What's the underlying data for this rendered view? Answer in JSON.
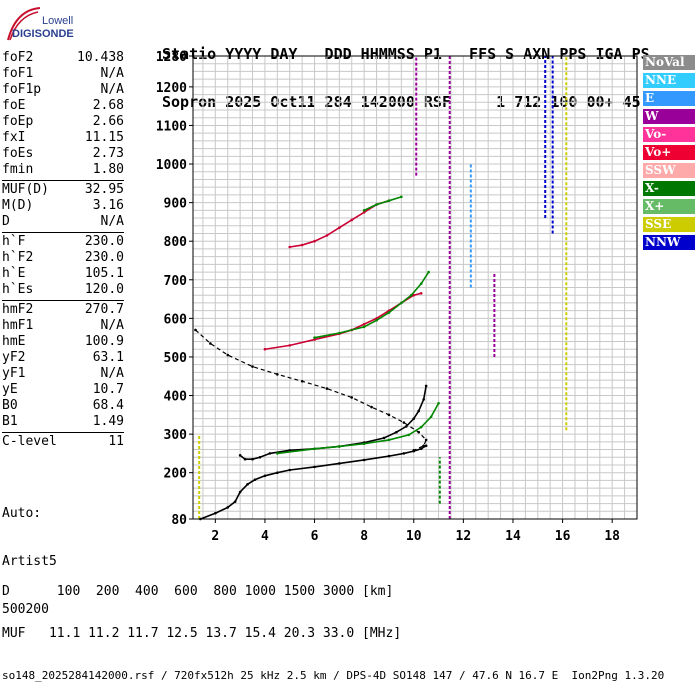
{
  "logo": {
    "brand": "Lowell",
    "product": "DIGISONDE",
    "brand_color": "#2a3f8f",
    "accent_color": "#c8102e"
  },
  "header": {
    "line1": "Statio YYYY DAY   DDD HHMMSS P1   FFS S AXN PPS IGA PS",
    "line2": "Sopron 2025 Oct11 284 142000 RSF     1 712 100 00+ 45"
  },
  "params": {
    "groups": [
      [
        {
          "label": "foF2",
          "value": "10.438"
        },
        {
          "label": "foF1",
          "value": "N/A"
        },
        {
          "label": "foF1p",
          "value": "N/A"
        },
        {
          "label": "foE",
          "value": "2.68"
        },
        {
          "label": "foEp",
          "value": "2.66"
        },
        {
          "label": "fxI",
          "value": "11.15"
        },
        {
          "label": "foEs",
          "value": "2.73"
        },
        {
          "label": "fmin",
          "value": "1.80"
        }
      ],
      [
        {
          "label": "MUF(D)",
          "value": "32.95"
        },
        {
          "label": "M(D)",
          "value": "3.16"
        },
        {
          "label": "D",
          "value": "N/A"
        }
      ],
      [
        {
          "label": "h`F",
          "value": "230.0"
        },
        {
          "label": "h`F2",
          "value": "230.0"
        },
        {
          "label": "h`E",
          "value": "105.1"
        },
        {
          "label": "h`Es",
          "value": "120.0"
        }
      ],
      [
        {
          "label": "hmF2",
          "value": "270.7"
        },
        {
          "label": "hmF1",
          "value": "N/A"
        },
        {
          "label": "hmE",
          "value": "100.9"
        },
        {
          "label": "yF2",
          "value": "63.1"
        },
        {
          "label": "yF1",
          "value": "N/A"
        },
        {
          "label": "yE",
          "value": "10.7"
        },
        {
          "label": "B0",
          "value": "68.4"
        },
        {
          "label": "B1",
          "value": "1.49"
        }
      ],
      [
        {
          "label": "C-level",
          "value": "11"
        }
      ]
    ]
  },
  "auto": {
    "line1": "Auto:",
    "line2": "Artist5",
    "line3": "500200"
  },
  "legend": [
    {
      "label": "NoVal",
      "color": "#8c8c8c"
    },
    {
      "label": "NNE",
      "color": "#33ccff"
    },
    {
      "label": "E",
      "color": "#3399ff"
    },
    {
      "label": "W",
      "color": "#990099"
    },
    {
      "label": "Vo-",
      "color": "#ff3399"
    },
    {
      "label": "Vo+",
      "color": "#ee0033"
    },
    {
      "label": "SSW",
      "color": "#ffaaaa"
    },
    {
      "label": "X-",
      "color": "#007700"
    },
    {
      "label": "X+",
      "color": "#66bb66"
    },
    {
      "label": "SSE",
      "color": "#cccc00"
    },
    {
      "label": "NNW",
      "color": "#0000cc"
    }
  ],
  "chart_data": {
    "type": "scatter",
    "x_ticks": [
      2,
      4,
      6,
      8,
      10,
      12,
      14,
      16,
      18
    ],
    "y_ticks": [
      80,
      200,
      300,
      400,
      500,
      600,
      700,
      800,
      900,
      1000,
      1100,
      1200,
      1280
    ],
    "xlim": [
      1.1,
      19.0
    ],
    "ylim": [
      80,
      1280
    ],
    "series": [
      {
        "color": "#000000",
        "dash": false,
        "x": [
          3.0,
          3.2,
          3.5,
          3.8,
          4.2,
          5.0,
          6.0,
          7.0,
          8.0,
          8.8,
          9.3,
          9.7,
          10.0,
          10.2,
          10.4,
          10.5
        ],
        "y": [
          245,
          235,
          235,
          240,
          250,
          258,
          262,
          268,
          278,
          290,
          305,
          320,
          340,
          360,
          390,
          425
        ]
      },
      {
        "color": "#000000",
        "dash": false,
        "x": [
          1.4,
          2.0,
          2.5,
          2.8,
          3.0,
          3.3,
          3.6,
          4.0,
          4.5,
          5.0,
          6.0,
          7.0,
          8.0,
          9.0,
          9.6,
          10.0,
          10.3,
          10.5
        ],
        "y": [
          80,
          95,
          110,
          125,
          150,
          170,
          182,
          192,
          200,
          207,
          215,
          224,
          233,
          243,
          250,
          256,
          262,
          270
        ]
      },
      {
        "color": "#000000",
        "dash": true,
        "x": [
          1.2,
          1.8,
          2.5,
          3.5,
          4.5,
          5.5,
          6.5,
          7.5,
          8.3,
          9.0,
          9.6,
          10.2,
          10.5,
          10.4,
          10.0
        ],
        "y": [
          570,
          535,
          505,
          475,
          455,
          437,
          418,
          395,
          370,
          350,
          330,
          305,
          285,
          270,
          258
        ]
      },
      {
        "color": "#cc0033",
        "dash": false,
        "x": [
          4.0,
          5.0,
          6.0,
          7.0,
          7.5,
          8.0,
          8.5,
          9.0,
          9.5,
          10.0,
          10.3
        ],
        "y": [
          520,
          530,
          545,
          560,
          570,
          585,
          600,
          620,
          640,
          660,
          665
        ]
      },
      {
        "color": "#008800",
        "dash": false,
        "x": [
          6.0,
          7.0,
          8.0,
          8.5,
          9.0,
          9.5,
          9.9,
          10.3,
          10.6
        ],
        "y": [
          550,
          562,
          578,
          595,
          615,
          640,
          660,
          690,
          720
        ]
      },
      {
        "color": "#cc0033",
        "dash": false,
        "x": [
          5.0,
          5.5,
          6.0,
          6.5,
          7.0,
          7.5,
          8.0,
          8.5,
          9.0
        ],
        "y": [
          785,
          790,
          800,
          815,
          835,
          855,
          875,
          895,
          905
        ]
      },
      {
        "color": "#008800",
        "dash": false,
        "x": [
          8.0,
          8.5,
          9.0,
          9.5
        ],
        "y": [
          880,
          895,
          905,
          915
        ]
      },
      {
        "color": "#008800",
        "dash": false,
        "x": [
          4.5,
          6.0,
          7.0,
          8.0,
          9.0,
          9.8,
          10.3,
          10.7,
          11.0
        ],
        "y": [
          250,
          262,
          268,
          275,
          285,
          298,
          318,
          345,
          380
        ]
      }
    ],
    "vertical_bands": [
      {
        "color": "#990099",
        "x": 11.45,
        "y": [
          80,
          1280
        ]
      },
      {
        "color": "#0000cc",
        "x": 15.3,
        "y": [
          860,
          1280
        ]
      },
      {
        "color": "#0000cc",
        "x": 15.6,
        "y": [
          820,
          1280
        ]
      },
      {
        "color": "#cccc00",
        "x": 16.15,
        "y": [
          310,
          1280
        ]
      },
      {
        "color": "#990099",
        "x": 13.25,
        "y": [
          500,
          720
        ]
      },
      {
        "color": "#3399ff",
        "x": 12.3,
        "y": [
          680,
          1000
        ]
      },
      {
        "color": "#990099",
        "x": 10.1,
        "y": [
          970,
          1280
        ]
      },
      {
        "color": "#008800",
        "x": 11.05,
        "y": [
          120,
          240
        ]
      },
      {
        "color": "#cccc00",
        "x": 1.35,
        "y": [
          80,
          300
        ]
      }
    ]
  },
  "footer": {
    "line1": "D      100  200  400  600  800 1000 1500 3000 [km]",
    "line2": "MUF   11.1 11.2 11.7 12.5 13.7 15.4 20.3 33.0 [MHz]",
    "line3": "so148_2025284142000.rsf / 720fx512h 25 kHz 2.5 km / DPS-4D SO148 147 / 47.6 N 16.7 E  Ion2Png 1.3.20"
  }
}
